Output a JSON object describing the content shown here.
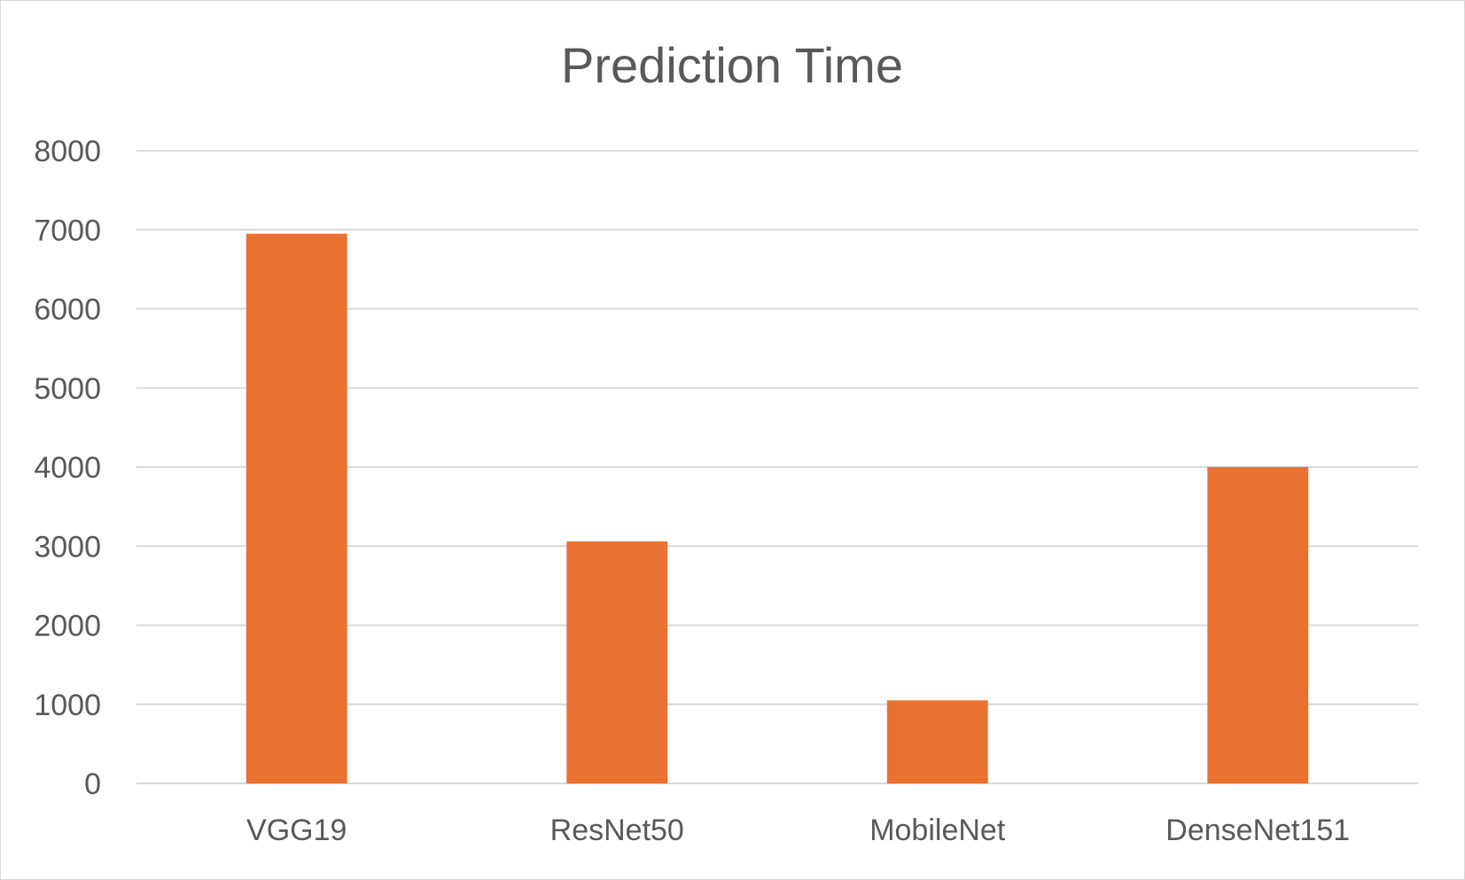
{
  "chart_data": {
    "type": "bar",
    "title": "Prediction Time",
    "xlabel": "",
    "ylabel": "",
    "categories": [
      "VGG19",
      "ResNet50",
      "MobileNet",
      "DenseNet151"
    ],
    "values": [
      6950,
      3060,
      1050,
      4000
    ],
    "ylim": [
      0,
      8000
    ],
    "yticks": [
      0,
      1000,
      2000,
      3000,
      4000,
      5000,
      6000,
      7000,
      8000
    ],
    "grid": true,
    "legend": "none",
    "bar_color": "#E97132",
    "grid_color": "#D9D9D9",
    "text_color": "#595959"
  }
}
